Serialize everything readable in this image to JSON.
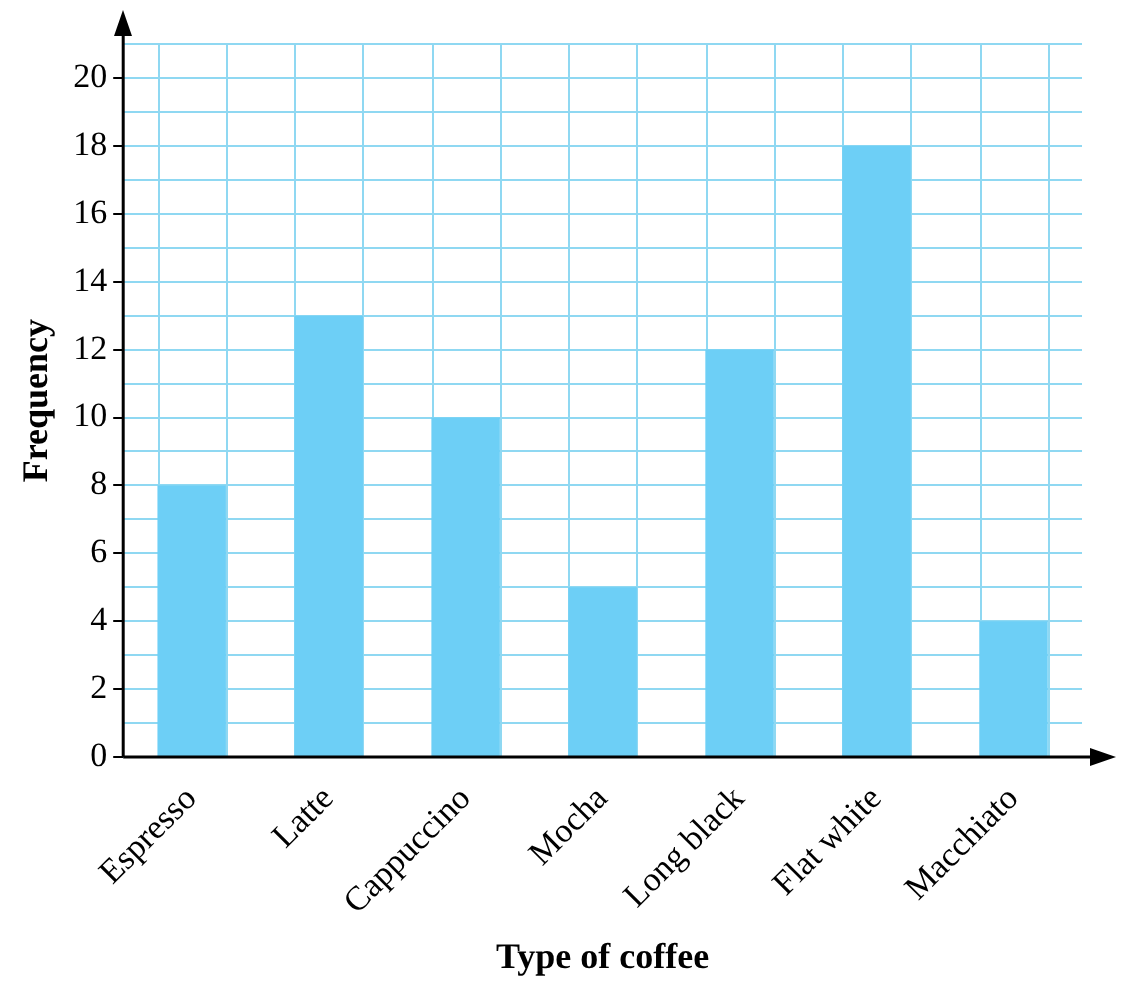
{
  "chart_data": {
    "type": "bar",
    "xlabel": "Type of coffee",
    "ylabel": "Frequency",
    "categories": [
      "Espresso",
      "Latte",
      "Cappuccino",
      "Mocha",
      "Long black",
      "Flat white",
      "Macchiato"
    ],
    "values": [
      8,
      13,
      10,
      5,
      12,
      18,
      4
    ],
    "color": "#6dcff6",
    "ylim": [
      0,
      21
    ],
    "yticks": [
      0,
      {
        "value": 1,
        "label": null
      },
      2,
      {
        "value": 3,
        "label": null
      },
      4,
      {
        "value": 5,
        "label": null
      },
      6,
      {
        "value": 7,
        "label": null
      },
      8,
      {
        "value": 9,
        "label": null
      },
      10,
      {
        "value": 11,
        "label": null
      },
      12,
      {
        "value": 13,
        "label": null
      },
      14,
      {
        "value": 15,
        "label": null
      },
      16,
      {
        "value": 17,
        "label": null
      },
      18,
      {
        "value": 19,
        "label": null
      },
      20,
      {
        "value": 21,
        "label": null
      }
    ],
    "grid": true,
    "legend": false
  }
}
